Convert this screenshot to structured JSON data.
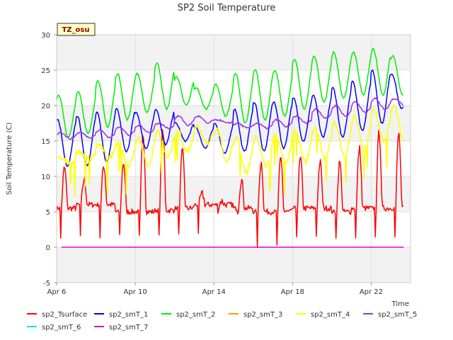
{
  "chart_data": {
    "type": "line",
    "title": "SP2 Soil Temperature",
    "xlabel": "Time",
    "ylabel": "Soil Temperature (C)",
    "site_label": "TZ_osu",
    "xlim": [
      "2024-04-06",
      "2024-04-24"
    ],
    "ylim": [
      -5,
      30
    ],
    "x_ticks": [
      {
        "date": "2024-04-06",
        "label": "Apr 6"
      },
      {
        "date": "2024-04-10",
        "label": "Apr 10"
      },
      {
        "date": "2024-04-14",
        "label": "Apr 14"
      },
      {
        "date": "2024-04-18",
        "label": "Apr 18"
      },
      {
        "date": "2024-04-22",
        "label": "Apr 22"
      }
    ],
    "y_ticks": [
      -5,
      0,
      5,
      10,
      15,
      20,
      25,
      30
    ],
    "grid": true,
    "legend_position": "bottom",
    "series": [
      {
        "name": "sp2_Tsurface",
        "color": "#ff0000",
        "kind": "surface",
        "x": [
          "2024-04-06",
          "2024-04-07",
          "2024-04-08",
          "2024-04-09",
          "2024-04-10",
          "2024-04-11",
          "2024-04-12",
          "2024-04-13",
          "2024-04-14",
          "2024-04-15",
          "2024-04-16",
          "2024-04-17",
          "2024-04-18",
          "2024-04-19",
          "2024-04-20",
          "2024-04-21",
          "2024-04-22",
          "2024-04-23"
        ],
        "min": [
          0.3,
          0.6,
          0.2,
          1.0,
          0.9,
          0.9,
          1.0,
          1.0,
          4.5,
          4.5,
          -1.2,
          -0.8,
          0.5,
          0.6,
          0.4,
          0.3,
          0.5,
          0.5
        ],
        "base": [
          5.5,
          6.0,
          6.0,
          5.0,
          5.0,
          5.2,
          5.5,
          6.0,
          6.0,
          5.5,
          5.0,
          5.0,
          5.5,
          5.5,
          5.0,
          5.5,
          5.5,
          5.5
        ],
        "max": [
          11.2,
          9.5,
          11.5,
          12.0,
          15.8,
          16.5,
          13.5,
          7.5,
          6.5,
          9.5,
          12.0,
          12.5,
          12.5,
          12.0,
          12.0,
          14.0,
          16.3,
          16.0
        ]
      },
      {
        "name": "sp2_smT_1",
        "color": "#0000ff",
        "kind": "daily",
        "x": [
          "2024-04-06",
          "2024-04-07",
          "2024-04-08",
          "2024-04-09",
          "2024-04-10",
          "2024-04-11",
          "2024-04-12",
          "2024-04-13",
          "2024-04-14",
          "2024-04-15",
          "2024-04-16",
          "2024-04-17",
          "2024-04-18",
          "2024-04-19",
          "2024-04-20",
          "2024-04-21",
          "2024-04-22",
          "2024-04-23"
        ],
        "min": [
          11.5,
          11.5,
          12.0,
          13.5,
          14.0,
          14.5,
          15.0,
          14.0,
          13.2,
          13.5,
          13.5,
          14.0,
          15.0,
          15.5,
          15.5,
          16.5,
          17.5,
          19.5
        ],
        "max": [
          18.0,
          18.5,
          19.0,
          19.5,
          19.0,
          19.5,
          17.5,
          17.0,
          17.5,
          19.5,
          20.5,
          20.5,
          21.0,
          21.5,
          22.5,
          23.5,
          25.0,
          24.5
        ]
      },
      {
        "name": "sp2_smT_2",
        "color": "#00ee00",
        "kind": "daily",
        "x": [
          "2024-04-06",
          "2024-04-07",
          "2024-04-08",
          "2024-04-09",
          "2024-04-10",
          "2024-04-11",
          "2024-04-12",
          "2024-04-13",
          "2024-04-14",
          "2024-04-15",
          "2024-04-16",
          "2024-04-17",
          "2024-04-18",
          "2024-04-19",
          "2024-04-20",
          "2024-04-21",
          "2024-04-22",
          "2024-04-23"
        ],
        "min": [
          15.5,
          16.0,
          17.0,
          18.0,
          19.0,
          19.5,
          20.0,
          19.5,
          18.5,
          17.5,
          18.0,
          18.5,
          19.5,
          20.5,
          21.0,
          21.5,
          21.5,
          21.5
        ],
        "max": [
          21.5,
          22.0,
          23.5,
          24.5,
          24.5,
          26.0,
          24.0,
          22.5,
          23.0,
          24.5,
          25.0,
          25.0,
          26.5,
          27.0,
          27.5,
          27.5,
          28.0,
          27.0
        ]
      },
      {
        "name": "sp2_smT_3",
        "color": "#ff9900",
        "kind": "none"
      },
      {
        "name": "sp2_smT_4",
        "color": "#ffff00",
        "kind": "noisy",
        "x": [
          "2024-04-06",
          "2024-04-07",
          "2024-04-08",
          "2024-04-09",
          "2024-04-10",
          "2024-04-11",
          "2024-04-12",
          "2024-04-13",
          "2024-04-14",
          "2024-04-15",
          "2024-04-16",
          "2024-04-17",
          "2024-04-18",
          "2024-04-19",
          "2024-04-20",
          "2024-04-21",
          "2024-04-22",
          "2024-04-23"
        ],
        "min": [
          12.0,
          12.5,
          12.5,
          11.5,
          11.5,
          12.5,
          13.5,
          14.5,
          12.0,
          10.5,
          11.5,
          12.0,
          12.0,
          12.5,
          13.0,
          14.0,
          15.0,
          15.0
        ],
        "max": [
          12.5,
          13.5,
          14.5,
          15.0,
          15.5,
          16.5,
          16.5,
          17.0,
          16.5,
          15.5,
          15.5,
          16.0,
          16.5,
          17.0,
          17.5,
          18.5,
          19.5,
          20.0
        ]
      },
      {
        "name": "sp2_smT_5",
        "color": "#9933ee",
        "kind": "smooth",
        "x": [
          "2024-04-06",
          "2024-04-07",
          "2024-04-08",
          "2024-04-09",
          "2024-04-10",
          "2024-04-11",
          "2024-04-12",
          "2024-04-13",
          "2024-04-14",
          "2024-04-15",
          "2024-04-16",
          "2024-04-17",
          "2024-04-18",
          "2024-04-19",
          "2024-04-20",
          "2024-04-21",
          "2024-04-22",
          "2024-04-23"
        ],
        "min": [
          15.3,
          15.5,
          15.5,
          15.8,
          16.2,
          16.8,
          17.2,
          17.5,
          17.5,
          16.8,
          16.8,
          17.0,
          17.5,
          18.2,
          18.5,
          19.0,
          19.5,
          20.0
        ],
        "max": [
          16.2,
          16.2,
          16.5,
          17.0,
          17.2,
          17.5,
          18.5,
          18.5,
          18.0,
          17.5,
          17.5,
          18.0,
          18.5,
          19.5,
          20.0,
          20.5,
          21.0,
          21.0
        ]
      },
      {
        "name": "sp2_smT_6",
        "color": "#00e5ee",
        "kind": "none"
      },
      {
        "name": "sp2_smT_7",
        "color": "#dd00dd",
        "kind": "constant",
        "x": [
          "2024-04-06",
          "2024-04-23"
        ],
        "y": [
          0,
          0
        ]
      }
    ]
  }
}
